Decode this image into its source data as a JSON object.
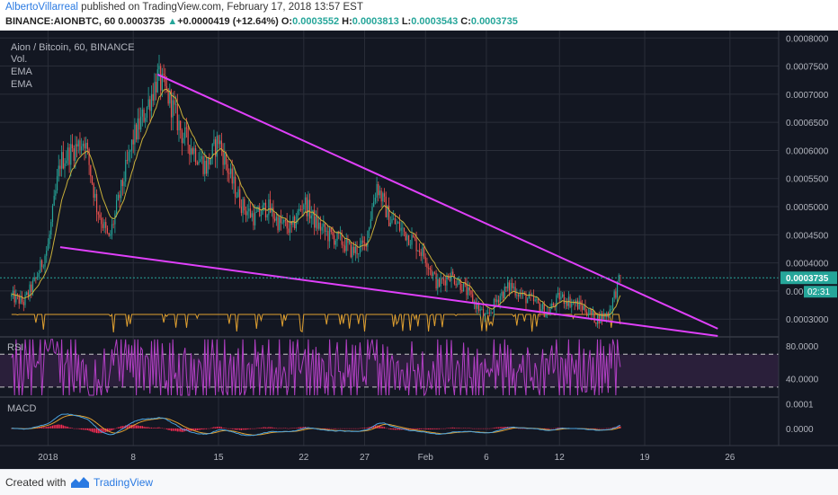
{
  "header": {
    "author": "AlbertoVillarreal",
    "published": "published on TradingView.com, February 17, 2018 13:57 EST",
    "symbol": "BINANCE:AIONBTC, 60",
    "price": "0.0003735",
    "change_arrow": "▲",
    "change": "+0.0000419 (+12.64%)",
    "o_label": "O:",
    "o": "0.0003552",
    "h_label": "H:",
    "h": "0.0003813",
    "l_label": "L:",
    "l": "0.0003543",
    "c_label": "C:",
    "c": "0.0003735"
  },
  "legend": {
    "title": "Aion / Bitcoin, 60, BINANCE",
    "vol": "Vol.",
    "ema1": "EMA",
    "ema2": "EMA"
  },
  "footer": {
    "created": "Created with",
    "brand": "TradingView"
  },
  "colors": {
    "background": "#131722",
    "grid": "#2a2e39",
    "up": "#26a69a",
    "down": "#ef5350",
    "wedge": "#e040fb",
    "ema": "#c9b03a",
    "rsi": "#b23fc4",
    "macd": "#4aa3df",
    "signal": "#e0a030",
    "hist": "#ff2d55",
    "price_tag": "#26a69a"
  },
  "chart_data": [
    {
      "type": "candlestick",
      "title": "Aion / Bitcoin, 60, BINANCE",
      "x_ticks": [
        "2018",
        "8",
        "15",
        "22",
        "27",
        "Feb",
        "6",
        "12",
        "19",
        "26"
      ],
      "y_ticks": [
        "0.0008000",
        "0.0007500",
        "0.0007000",
        "0.0006500",
        "0.0006000",
        "0.0005500",
        "0.0005000",
        "0.0004500",
        "0.0004000",
        "0.0003500",
        "0.0003000"
      ],
      "ylim": [
        0.00027,
        0.00081
      ],
      "last_price_label": "0.0003735",
      "countdown_label": "02:31",
      "price_path": [
        [
          "2017-12-29",
          0.00034
        ],
        [
          "2017-12-30",
          0.00033
        ],
        [
          "2017-12-31",
          0.00037
        ],
        [
          "2018-01-01",
          0.00043
        ],
        [
          "2018-01-02",
          0.00058
        ],
        [
          "2018-01-03",
          0.0006
        ],
        [
          "2018-01-04",
          0.00062
        ],
        [
          "2018-01-05",
          0.0005
        ],
        [
          "2018-01-06",
          0.00044
        ],
        [
          "2018-01-07",
          0.00053
        ],
        [
          "2018-01-08",
          0.00062
        ],
        [
          "2018-01-09",
          0.00067
        ],
        [
          "2018-01-10",
          0.00073
        ],
        [
          "2018-01-11",
          0.00069
        ],
        [
          "2018-01-12",
          0.00063
        ],
        [
          "2018-01-13",
          0.0006
        ],
        [
          "2018-01-14",
          0.00057
        ],
        [
          "2018-01-15",
          0.00062
        ],
        [
          "2018-01-16",
          0.00055
        ],
        [
          "2018-01-17",
          0.0005
        ],
        [
          "2018-01-18",
          0.00048
        ],
        [
          "2018-01-19",
          0.0005
        ],
        [
          "2018-01-20",
          0.00047
        ],
        [
          "2018-01-21",
          0.00046
        ],
        [
          "2018-01-22",
          0.00051
        ],
        [
          "2018-01-23",
          0.00047
        ],
        [
          "2018-01-24",
          0.00045
        ],
        [
          "2018-01-25",
          0.00044
        ],
        [
          "2018-01-26",
          0.00042
        ],
        [
          "2018-01-27",
          0.00043
        ],
        [
          "2018-01-28",
          0.00054
        ],
        [
          "2018-01-29",
          0.00048
        ],
        [
          "2018-01-30",
          0.00046
        ],
        [
          "2018-01-31",
          0.00044
        ],
        [
          "2018-02-01",
          0.00041
        ],
        [
          "2018-02-02",
          0.00036
        ],
        [
          "2018-02-03",
          0.00038
        ],
        [
          "2018-02-04",
          0.00036
        ],
        [
          "2018-02-05",
          0.00033
        ],
        [
          "2018-02-06",
          0.0003
        ],
        [
          "2018-02-07",
          0.00034
        ],
        [
          "2018-02-08",
          0.00036
        ],
        [
          "2018-02-09",
          0.00034
        ],
        [
          "2018-02-10",
          0.00033
        ],
        [
          "2018-02-11",
          0.00031
        ],
        [
          "2018-02-12",
          0.00034
        ],
        [
          "2018-02-13",
          0.00033
        ],
        [
          "2018-02-14",
          0.00032
        ],
        [
          "2018-02-15",
          0.0003
        ],
        [
          "2018-02-16",
          0.00031
        ],
        [
          "2018-02-17",
          0.000374
        ]
      ],
      "trendlines": [
        {
          "name": "upper",
          "from": [
            "2018-01-10",
            0.000735
          ],
          "to": [
            "2018-02-25",
            0.000283
          ]
        },
        {
          "name": "lower",
          "from": [
            "2018-01-02",
            0.000428
          ],
          "to": [
            "2018-02-25",
            0.00027
          ]
        }
      ]
    },
    {
      "type": "line",
      "title": "RSI",
      "y_ticks": [
        "80.0000",
        "40.0000"
      ],
      "ylim": [
        20,
        90
      ],
      "band": [
        30,
        70
      ]
    },
    {
      "type": "line",
      "title": "MACD",
      "y_ticks": [
        "0.0001",
        "0.0000"
      ],
      "ylim": [
        -7e-05,
        0.00012
      ]
    }
  ]
}
